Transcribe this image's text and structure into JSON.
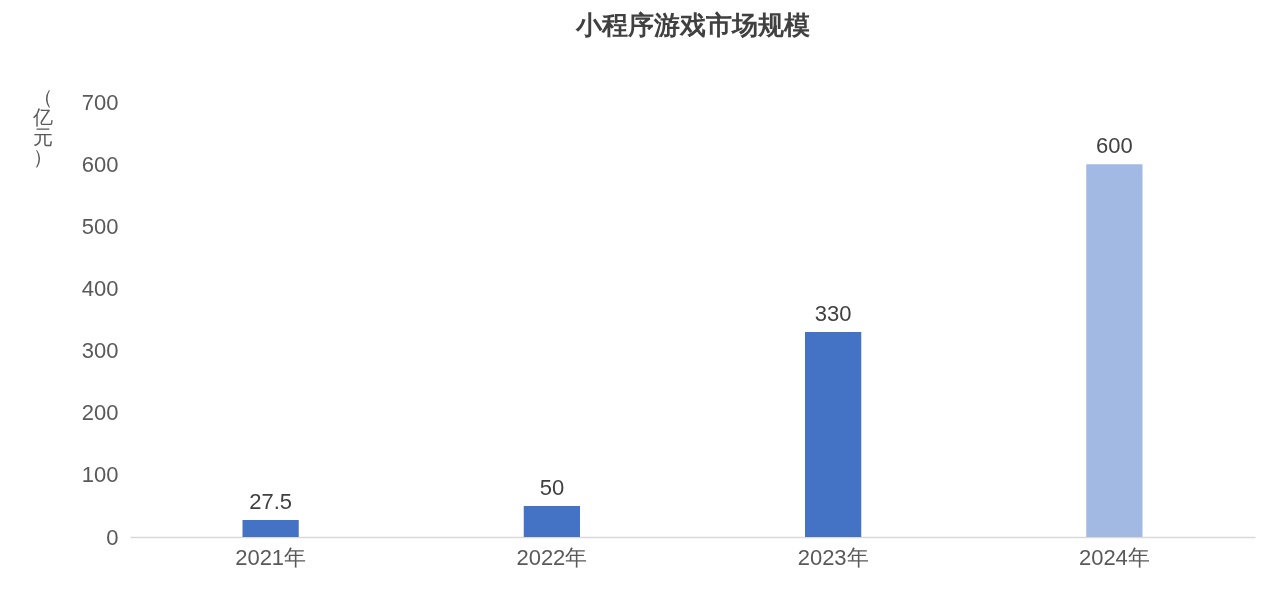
{
  "chart_data": {
    "type": "bar",
    "title": "小程序游戏市场规模",
    "ylabel": "（亿元）",
    "categories": [
      "2021年",
      "2022年",
      "2023年",
      "2024年"
    ],
    "values": [
      27.5,
      50,
      330,
      600
    ],
    "colors": [
      "#4472c4",
      "#4472c4",
      "#4472c4",
      "#a2b9e3"
    ],
    "ylim": [
      0,
      700
    ],
    "yticks": [
      0,
      100,
      200,
      300,
      400,
      500,
      600,
      700
    ],
    "grid": false,
    "data_labels": true
  }
}
